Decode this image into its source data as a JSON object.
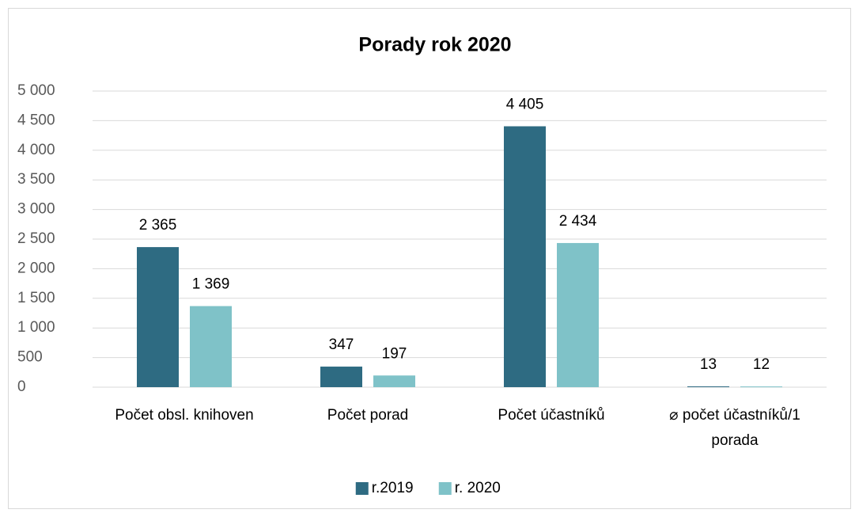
{
  "chart_data": {
    "type": "bar",
    "title": "Porady rok 2020",
    "categories": [
      "Počet obsl. knihoven",
      "Počet porad",
      "Počet účastníků",
      "⌀ počet účastníků/1 porada"
    ],
    "series": [
      {
        "name": "r.2019",
        "color": "#2e6b82",
        "values": [
          2365,
          347,
          4405,
          13
        ],
        "value_labels": [
          "2 365",
          "347",
          "4 405",
          "13"
        ]
      },
      {
        "name": "r. 2020",
        "color": "#7fc2c8",
        "values": [
          1369,
          197,
          2434,
          12
        ],
        "value_labels": [
          "1 369",
          "197",
          "2 434",
          "12"
        ]
      }
    ],
    "ylim": [
      0,
      5000
    ],
    "yticks": [
      0,
      500,
      {
        "value": 1000,
        "label": "1 000"
      },
      {
        "value": 1500,
        "label": "1 500"
      },
      {
        "value": 2000,
        "label": "2 000"
      },
      {
        "value": 2500,
        "label": "2 500"
      },
      {
        "value": 3000,
        "label": "3 000"
      },
      {
        "value": 3500,
        "label": "3 500"
      },
      {
        "value": 4000,
        "label": "4 000"
      },
      {
        "value": 4500,
        "label": "4 500"
      },
      {
        "value": 5000,
        "label": "5 000"
      }
    ],
    "grid": true,
    "legend": "bottom"
  }
}
